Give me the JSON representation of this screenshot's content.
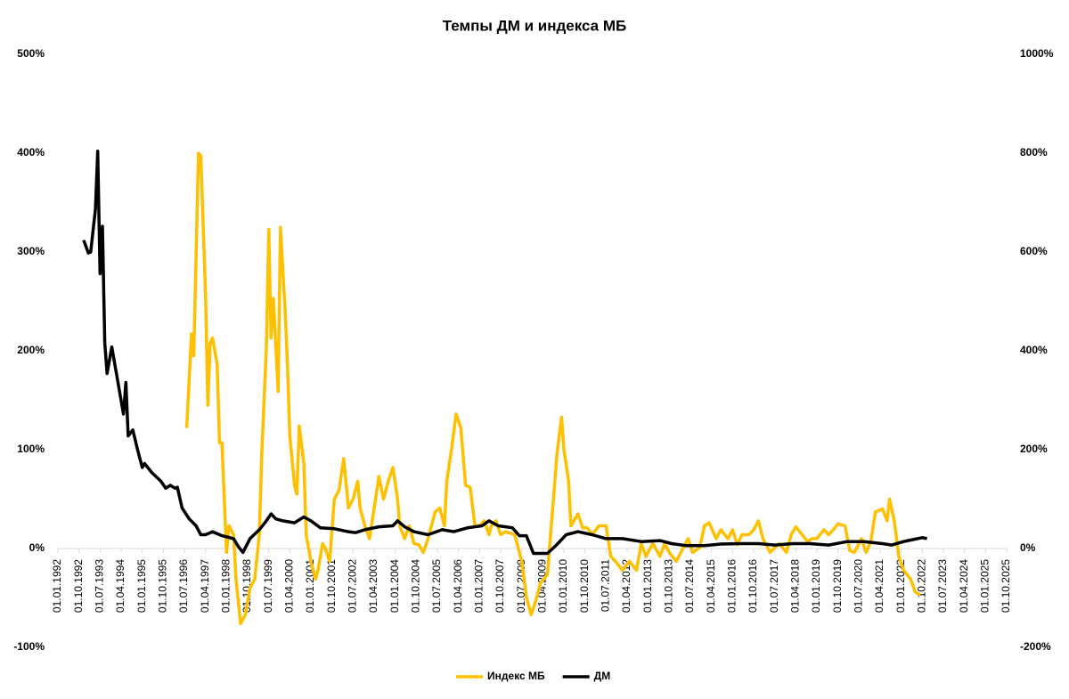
{
  "chart_data": {
    "type": "line",
    "title": "Темпы ДМ и индекса МБ",
    "xlim": [
      "01.01.1992",
      "01.10.2025"
    ],
    "xticks": [
      "01.01.1992",
      "01.10.1992",
      "01.07.1993",
      "01.04.1994",
      "01.01.1995",
      "01.10.1995",
      "01.07.1996",
      "01.04.1997",
      "01.01.1998",
      "01.10.1998",
      "01.07.1999",
      "01.04.2000",
      "01.01.2001",
      "01.10.2001",
      "01.07.2002",
      "01.04.2003",
      "01.01.2004",
      "01.10.2004",
      "01.07.2005",
      "01.04.2006",
      "01.01.2007",
      "01.10.2007",
      "01.07.2008",
      "01.04.2009",
      "01.01.2010",
      "01.10.2010",
      "01.07.2011",
      "01.04.2012",
      "01.01.2013",
      "01.10.2013",
      "01.07.2014",
      "01.04.2015",
      "01.01.2016",
      "01.10.2016",
      "01.07.2017",
      "01.04.2018",
      "01.01.2019",
      "01.10.2019",
      "01.07.2020",
      "01.04.2021",
      "01.01.2022",
      "01.10.2022",
      "01.07.2023",
      "01.04.2024",
      "01.01.2025",
      "01.10.2025"
    ],
    "ylim": [
      -100,
      500
    ],
    "yticks": [
      {
        "value": -100,
        "label": "-100%"
      },
      {
        "value": 0,
        "label": "0%"
      },
      {
        "value": 100,
        "label": "100%"
      },
      {
        "value": 200,
        "label": "200%"
      },
      {
        "value": 300,
        "label": "300%"
      },
      {
        "value": 400,
        "label": "400%"
      },
      {
        "value": 500,
        "label": "500%"
      }
    ],
    "y2lim": [
      -200,
      1000
    ],
    "y2ticks": [
      {
        "value": -200,
        "label": "-200%"
      },
      {
        "value": 0,
        "label": "0%"
      },
      {
        "value": 200,
        "label": "200%"
      },
      {
        "value": 400,
        "label": "400%"
      },
      {
        "value": 600,
        "label": "600%"
      },
      {
        "value": 800,
        "label": "800%"
      },
      {
        "value": 1000,
        "label": "1000%"
      }
    ],
    "grid": false,
    "legend": "bottom",
    "series": [
      {
        "name": "Индекс МБ",
        "color": "#FFC000",
        "x": [
          "01.08.1996",
          "01.10.1996",
          "01.11.1996",
          "01.01.1997",
          "01.02.1997",
          "01.04.1997",
          "01.05.1997",
          "01.06.1997",
          "01.07.1997",
          "01.09.1997",
          "01.10.1997",
          "01.11.1997",
          "01.01.1998",
          "01.02.1998",
          "01.04.1998",
          "01.05.1998",
          "01.07.1998",
          "01.09.1998",
          "01.11.1998",
          "01.01.1999",
          "01.03.1999",
          "01.04.1999",
          "01.06.1999",
          "01.07.1999",
          "01.08.1999",
          "01.09.1999",
          "01.11.1999",
          "01.12.1999",
          "01.02.2000",
          "01.03.2000",
          "01.04.2000",
          "01.06.2000",
          "01.07.2000",
          "01.08.2000",
          "01.10.2000",
          "01.11.2000",
          "01.01.2001",
          "01.03.2001",
          "01.04.2001",
          "01.06.2001",
          "01.07.2001",
          "01.09.2001",
          "01.11.2001",
          "01.01.2002",
          "01.03.2002",
          "01.05.2002",
          "01.07.2002",
          "01.09.2002",
          "01.10.2002",
          "01.12.2002",
          "01.02.2003",
          "01.04.2003",
          "01.06.2003",
          "01.08.2003",
          "01.10.2003",
          "01.12.2003",
          "01.02.2004",
          "01.03.2004",
          "01.05.2004",
          "01.07.2004",
          "01.09.2004",
          "01.11.2004",
          "01.01.2005",
          "01.03.2005",
          "01.06.2005",
          "01.08.2005",
          "01.10.2005",
          "01.11.2005",
          "01.01.2006",
          "01.03.2006",
          "01.05.2006",
          "01.07.2006",
          "01.09.2006",
          "01.11.2006",
          "01.01.2007",
          "01.03.2007",
          "01.05.2007",
          "01.06.2007",
          "01.08.2007",
          "01.10.2007",
          "01.12.2007",
          "01.04.2008",
          "01.07.2008",
          "01.09.2008",
          "01.11.2008",
          "01.01.2009",
          "01.03.2009",
          "01.06.2009",
          "01.07.2009",
          "01.09.2009",
          "01.10.2009",
          "01.12.2009",
          "01.01.2010",
          "01.03.2010",
          "01.04.2010",
          "01.07.2010",
          "01.09.2010",
          "01.11.2010",
          "01.01.2011",
          "01.04.2011",
          "01.07.2011",
          "01.09.2011",
          "01.11.2011",
          "01.02.2012",
          "01.05.2012",
          "01.08.2012",
          "01.10.2012",
          "01.12.2012",
          "01.03.2013",
          "01.06.2013",
          "01.08.2013",
          "01.10.2013",
          "01.01.2014",
          "01.04.2014",
          "01.06.2014",
          "01.08.2014",
          "01.11.2014",
          "01.01.2015",
          "01.03.2015",
          "01.06.2015",
          "01.08.2015",
          "01.11.2015",
          "01.01.2016",
          "01.03.2016",
          "01.05.2016",
          "01.08.2016",
          "01.10.2016",
          "01.12.2016",
          "01.02.2017",
          "01.05.2017",
          "01.07.2017",
          "01.09.2017",
          "01.12.2017",
          "01.02.2018",
          "01.04.2018",
          "01.06.2018",
          "01.09.2018",
          "01.11.2018",
          "01.01.2019",
          "01.04.2019",
          "01.06.2019",
          "01.08.2019",
          "01.10.2019",
          "01.01.2020",
          "01.03.2020",
          "01.05.2020",
          "01.08.2020",
          "01.10.2020",
          "01.12.2020",
          "01.02.2021",
          "01.05.2021",
          "01.07.2021",
          "01.08.2021",
          "01.10.2021",
          "01.12.2021",
          "01.02.2022",
          "01.05.2022",
          "01.07.2022",
          "01.09.2022"
        ],
        "values": [
          122,
          217,
          195,
          400,
          397,
          258,
          145,
          208,
          213,
          186,
          107,
          107,
          -4,
          23,
          14,
          -31,
          -76,
          -67,
          -40,
          -31,
          14,
          95,
          204,
          323,
          213,
          253,
          159,
          325,
          240,
          186,
          114,
          64,
          55,
          124,
          86,
          14,
          -13,
          -31,
          -22,
          5,
          1,
          -13,
          50,
          59,
          91,
          41,
          50,
          68,
          41,
          23,
          10,
          41,
          73,
          50,
          68,
          82,
          50,
          22,
          10,
          23,
          5,
          4,
          -4,
          10,
          37,
          41,
          23,
          68,
          100,
          136,
          122,
          64,
          62,
          23,
          23,
          28,
          14,
          23,
          28,
          14,
          17,
          14,
          -13,
          -49,
          -67,
          -53,
          -35,
          -26,
          5,
          64,
          95,
          133,
          100,
          68,
          23,
          35,
          21,
          21,
          14,
          23,
          23,
          -8,
          -13,
          -22,
          -13,
          -22,
          5,
          -8,
          5,
          -8,
          5,
          -4,
          -13,
          1,
          10,
          -4,
          1,
          23,
          26,
          10,
          19,
          10,
          19,
          4,
          14,
          14,
          19,
          28,
          10,
          -4,
          1,
          5,
          -4,
          14,
          22,
          16,
          7,
          10,
          10,
          19,
          14,
          19,
          25,
          23,
          -2,
          -4,
          10,
          -4,
          7,
          37,
          40,
          28,
          50,
          28,
          -8,
          -22,
          -31,
          -44,
          -47
        ]
      },
      {
        "name": "ДМ",
        "color": "#000000",
        "axis": "y2",
        "x": [
          "01.12.1992",
          "01.02.1993",
          "01.03.1993",
          "01.05.1993",
          "01.06.1993",
          "01.07.1993",
          "01.08.1993",
          "01.09.1993",
          "01.10.1993",
          "01.12.1993",
          "01.02.1994",
          "01.05.1994",
          "01.06.1994",
          "01.07.1994",
          "01.09.1994",
          "01.11.1994",
          "01.01.1995",
          "01.02.1995",
          "01.05.1995",
          "01.09.1995",
          "01.11.1995",
          "01.01.1996",
          "01.03.1996",
          "01.04.1996",
          "01.06.1996",
          "01.09.1996",
          "01.12.1996",
          "01.02.1997",
          "01.04.1997",
          "01.07.1997",
          "01.11.1997",
          "01.04.1998",
          "01.06.1998",
          "01.08.1998",
          "01.11.1998",
          "01.03.1999",
          "01.06.1999",
          "01.08.1999",
          "01.10.1999",
          "01.01.2000",
          "01.06.2000",
          "01.10.2000",
          "01.01.2001",
          "01.05.2001",
          "01.11.2001",
          "01.05.2002",
          "01.08.2002",
          "01.12.2002",
          "01.06.2003",
          "01.12.2003",
          "01.02.2004",
          "01.05.2004",
          "01.09.2004",
          "01.03.2005",
          "01.09.2005",
          "01.02.2006",
          "01.08.2006",
          "01.02.2007",
          "01.05.2007",
          "01.09.2007",
          "01.03.2008",
          "01.06.2008",
          "01.09.2008",
          "01.12.2008",
          "01.06.2009",
          "01.10.2009",
          "01.02.2010",
          "01.07.2010",
          "01.01.2011",
          "01.07.2011",
          "01.02.2012",
          "01.10.2012",
          "01.06.2013",
          "01.11.2013",
          "01.05.2014",
          "01.01.2015",
          "01.08.2015",
          "01.04.2016",
          "01.12.2016",
          "01.07.2017",
          "01.03.2018",
          "01.10.2018",
          "01.06.2019",
          "01.02.2020",
          "01.09.2020",
          "01.05.2021",
          "01.09.2021",
          "01.02.2022",
          "01.06.2022",
          "01.10.2022",
          "01.12.2022"
        ],
        "values": [
          624,
          598,
          600,
          686,
          804,
          556,
          652,
          416,
          354,
          408,
          354,
          272,
          336,
          228,
          240,
          200,
          164,
          172,
          154,
          136,
          122,
          128,
          122,
          124,
          82,
          60,
          46,
          28,
          28,
          34,
          26,
          20,
          4,
          -8,
          20,
          38,
          56,
          70,
          60,
          56,
          52,
          64,
          56,
          42,
          40,
          34,
          32,
          38,
          44,
          46,
          56,
          44,
          34,
          28,
          38,
          34,
          42,
          46,
          56,
          46,
          42,
          26,
          26,
          -10,
          -10,
          8,
          28,
          34,
          28,
          20,
          20,
          14,
          16,
          10,
          6,
          6,
          9,
          10,
          10,
          7,
          10,
          10,
          7,
          14,
          14,
          10,
          7,
          14,
          18,
          22,
          20
        ]
      }
    ]
  }
}
